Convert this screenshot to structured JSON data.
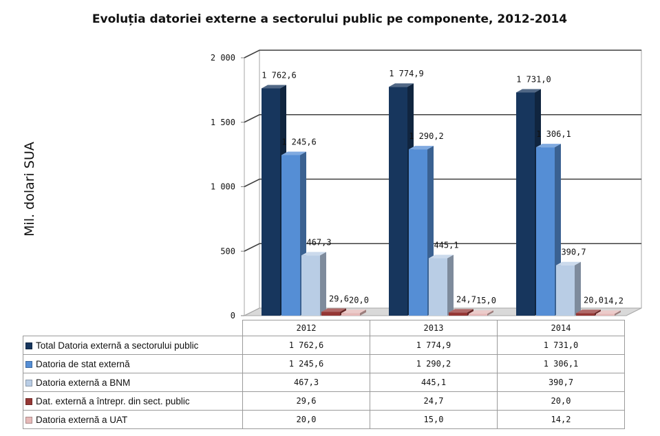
{
  "chart_data": {
    "type": "bar",
    "title": "Evoluția datoriei externe a sectorului public pe componente, 2012-2014",
    "ylabel": "Mil. dolari SUA",
    "xlabel": "",
    "ylim": [
      0,
      2000
    ],
    "yticks": [
      0,
      500,
      1000,
      1500,
      2000
    ],
    "ytick_labels": [
      "0",
      "500",
      "1 000",
      "1 500",
      "2 000"
    ],
    "categories": [
      "2012",
      "2013",
      "2014"
    ],
    "grid": true,
    "legend": "data-table",
    "series": [
      {
        "name": "Total Datoria externă a sectorului public",
        "color": "#17365d",
        "values": [
          1762.6,
          1774.9,
          1731.0
        ],
        "labels": [
          "1 762,6",
          "1 774,9",
          "1 731,0"
        ]
      },
      {
        "name": "Datoria de stat externă",
        "color": "#558ed5",
        "values": [
          1245.6,
          1290.2,
          1306.1
        ],
        "labels": [
          "1 245,6",
          "1 290,2",
          "1 306,1"
        ]
      },
      {
        "name": "Datoria externă a BNM",
        "color": "#b9cde5",
        "values": [
          467.3,
          445.1,
          390.7
        ],
        "labels": [
          "467,3",
          "445,1",
          "390,7"
        ]
      },
      {
        "name": "Dat. externă a întrepr. din sect. public",
        "color": "#953735",
        "values": [
          29.6,
          24.7,
          20.0
        ],
        "labels": [
          "29,6",
          "24,7",
          "20,0"
        ]
      },
      {
        "name": "Datoria externă a UAT",
        "color": "#e6b9b8",
        "values": [
          20.0,
          15.0,
          14.2
        ],
        "labels": [
          "20,0",
          "15,0",
          "14,2"
        ]
      }
    ]
  }
}
